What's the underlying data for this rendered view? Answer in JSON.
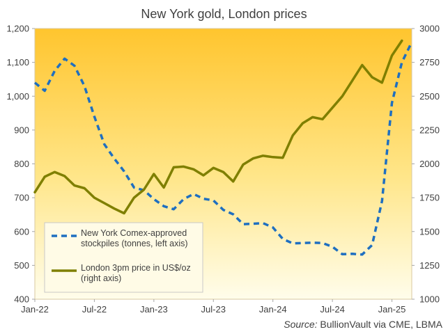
{
  "chart_data": {
    "type": "line",
    "title": "New York gold, London prices",
    "source_label": "Source:",
    "source_text": "BullionVault via CME, LBMA",
    "x_ticks": [
      "Jan-22",
      "Jul-22",
      "Jan-23",
      "Jul-23",
      "Jan-24",
      "Jul-24",
      "Jan-25"
    ],
    "x_range": [
      "2022-01",
      "2025-03"
    ],
    "y_left": {
      "range": [
        400,
        1200
      ],
      "ticks": [
        "400",
        "500",
        "600",
        "700",
        "800",
        "900",
        "1,000",
        "1,100",
        "1,200"
      ]
    },
    "y_right": {
      "range": [
        1000,
        3000
      ],
      "ticks": [
        "1000",
        "1250",
        "1500",
        "1750",
        "2000",
        "2250",
        "2500",
        "2750",
        "3000"
      ]
    },
    "grid": false,
    "legend_position": "bottom-left",
    "series": [
      {
        "name": "New York Comex-approved stockpiles (tonnes, left axis)",
        "axis": "left",
        "color": "#1F6FC0",
        "style": "dashed",
        "points": [
          [
            "2022-01",
            1040
          ],
          [
            "2022-02",
            1016
          ],
          [
            "2022-03",
            1075
          ],
          [
            "2022-04",
            1111
          ],
          [
            "2022-05",
            1090
          ],
          [
            "2022-06",
            1030
          ],
          [
            "2022-07",
            940
          ],
          [
            "2022-08",
            858
          ],
          [
            "2022-09",
            816
          ],
          [
            "2022-10",
            778
          ],
          [
            "2022-11",
            730
          ],
          [
            "2022-12",
            722
          ],
          [
            "2023-01",
            696
          ],
          [
            "2023-02",
            675
          ],
          [
            "2023-03",
            666
          ],
          [
            "2023-04",
            696
          ],
          [
            "2023-05",
            711
          ],
          [
            "2023-06",
            697
          ],
          [
            "2023-07",
            692
          ],
          [
            "2023-08",
            664
          ],
          [
            "2023-09",
            651
          ],
          [
            "2023-10",
            622
          ],
          [
            "2023-11",
            623
          ],
          [
            "2023-12",
            625
          ],
          [
            "2024-01",
            612
          ],
          [
            "2024-02",
            578
          ],
          [
            "2024-03",
            565
          ],
          [
            "2024-04",
            566
          ],
          [
            "2024-05",
            567
          ],
          [
            "2024-06",
            566
          ],
          [
            "2024-07",
            555
          ],
          [
            "2024-08",
            533
          ],
          [
            "2024-09",
            534
          ],
          [
            "2024-10",
            532
          ],
          [
            "2024-11",
            560
          ],
          [
            "2024-12",
            690
          ],
          [
            "2025-01",
            980
          ],
          [
            "2025-02",
            1100
          ],
          [
            "2025-03",
            1160
          ]
        ]
      },
      {
        "name": "London 3pm price in US$/oz (right axis)",
        "axis": "right",
        "color": "#7F7F00",
        "style": "solid",
        "points": [
          [
            "2022-01",
            1790
          ],
          [
            "2022-02",
            1905
          ],
          [
            "2022-03",
            1940
          ],
          [
            "2022-04",
            1910
          ],
          [
            "2022-05",
            1840
          ],
          [
            "2022-06",
            1820
          ],
          [
            "2022-07",
            1750
          ],
          [
            "2022-08",
            1710
          ],
          [
            "2022-09",
            1670
          ],
          [
            "2022-10",
            1635
          ],
          [
            "2022-11",
            1750
          ],
          [
            "2022-12",
            1810
          ],
          [
            "2023-01",
            1925
          ],
          [
            "2023-02",
            1825
          ],
          [
            "2023-03",
            1975
          ],
          [
            "2023-04",
            1980
          ],
          [
            "2023-05",
            1960
          ],
          [
            "2023-06",
            1915
          ],
          [
            "2023-07",
            1970
          ],
          [
            "2023-08",
            1940
          ],
          [
            "2023-09",
            1870
          ],
          [
            "2023-10",
            1995
          ],
          [
            "2023-11",
            2040
          ],
          [
            "2023-12",
            2060
          ],
          [
            "2024-01",
            2050
          ],
          [
            "2024-02",
            2045
          ],
          [
            "2024-03",
            2210
          ],
          [
            "2024-04",
            2300
          ],
          [
            "2024-05",
            2345
          ],
          [
            "2024-06",
            2330
          ],
          [
            "2024-07",
            2415
          ],
          [
            "2024-08",
            2500
          ],
          [
            "2024-09",
            2615
          ],
          [
            "2024-10",
            2730
          ],
          [
            "2024-11",
            2640
          ],
          [
            "2024-12",
            2600
          ],
          [
            "2025-01",
            2800
          ],
          [
            "2025-02",
            2910
          ]
        ]
      }
    ]
  }
}
